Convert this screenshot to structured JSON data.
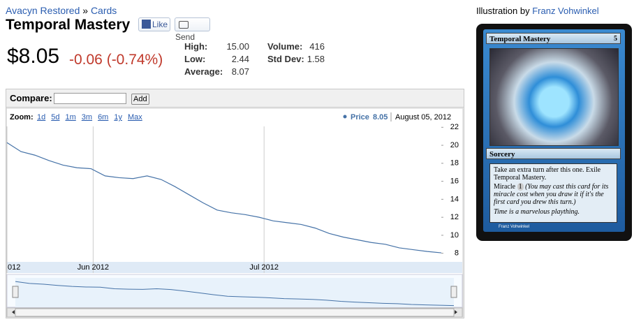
{
  "header": {
    "breadcrumb": [
      "Avacyn Restored",
      "Cards"
    ],
    "separator": "»",
    "title": "Temporal Mastery",
    "like": "Like",
    "send": "Send"
  },
  "price": {
    "current": "$8.05",
    "change": "-0.06 (-0.74%)"
  },
  "stats": [
    {
      "label": "High:",
      "value": "15.00"
    },
    {
      "label": "Low:",
      "value": "2.44"
    },
    {
      "label": "Average:",
      "value": "8.07"
    },
    {
      "label": "Volume:",
      "value": "416"
    },
    {
      "label": "Std Dev:",
      "value": "1.58"
    }
  ],
  "compare": {
    "label": "Compare:",
    "button": "Add"
  },
  "zoom": {
    "label": "Zoom:",
    "options": [
      "1d",
      "5d",
      "1m",
      "3m",
      "6m",
      "1y",
      "Max"
    ]
  },
  "chart_data": {
    "type": "line",
    "date": "August 05, 2012",
    "series": [
      {
        "name": "Price",
        "color": "#4572a7",
        "values": [
          20.3,
          19.3,
          18.9,
          18.3,
          17.8,
          17.5,
          17.4,
          16.6,
          16.4,
          16.3,
          16.6,
          16.2,
          15.4,
          14.5,
          13.6,
          12.8,
          12.5,
          12.3,
          12.0,
          11.6,
          11.4,
          11.2,
          10.8,
          10.2,
          9.8,
          9.5,
          9.2,
          9.0,
          8.6,
          8.4,
          8.2,
          8.05
        ]
      }
    ],
    "xlim": [
      0,
      31
    ],
    "xticks": [
      {
        "value": 0,
        "label": "012"
      },
      {
        "value": 6.15,
        "label": "Jun 2012"
      },
      {
        "value": 18.35,
        "label": "Jul 2012"
      }
    ],
    "ylim": [
      7.2,
      22.1
    ],
    "yticks": [
      8,
      10,
      12,
      14,
      16,
      18,
      20,
      22
    ],
    "grid": true
  },
  "illustration": {
    "label": "Illustration by",
    "artist": "Franz Vohwinkel"
  },
  "card": {
    "name": "Temporal Mastery",
    "cost": "5",
    "type": "Sorcery",
    "rules": "Take an extra turn after this one. Exile Temporal Mastery.",
    "miracle": "Miracle",
    "miracle_cost": "1",
    "reminder": "(You may cast this card for its miracle cost when you draw it if it's the first card you drew this turn.)",
    "flavor": "Time is a marvelous plaything.",
    "credit": "Franz Vohwinkel"
  }
}
